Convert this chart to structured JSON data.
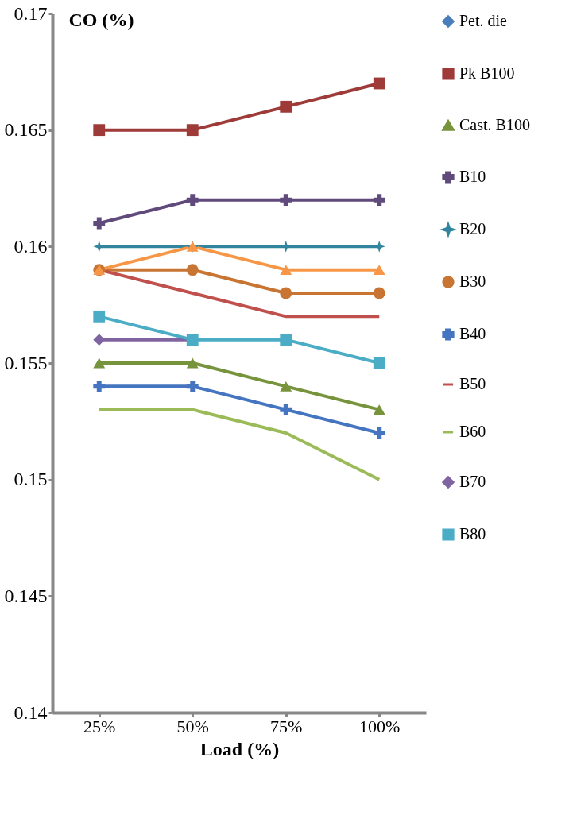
{
  "chart_data": {
    "type": "line",
    "ylabel": "CO (%)",
    "xlabel": "Load (%)",
    "categories": [
      "25%",
      "50%",
      "75%",
      "100%"
    ],
    "ylim": [
      0.14,
      0.17
    ],
    "yticks": [
      0.14,
      0.145,
      0.15,
      0.155,
      0.16,
      0.165,
      0.17
    ],
    "grid": false,
    "legend": "right",
    "series": [
      {
        "name": "Pet. die",
        "color": "#4a7ebb",
        "marker": "diamond",
        "values": [
          null,
          null,
          null,
          null
        ]
      },
      {
        "name": "Pk B100",
        "color": "#9e3a38",
        "marker": "square",
        "values": [
          0.165,
          0.165,
          0.166,
          0.167
        ]
      },
      {
        "name": "Cast. B100",
        "color": "#77933c",
        "marker": "triangle",
        "values": [
          0.155,
          0.155,
          0.154,
          0.153
        ]
      },
      {
        "name": "B10",
        "color": "#604a7b",
        "marker": "cross",
        "values": [
          0.161,
          0.162,
          0.162,
          0.162
        ]
      },
      {
        "name": "B20",
        "color": "#31859c",
        "marker": "star",
        "values": [
          0.16,
          0.16,
          0.16,
          0.16
        ]
      },
      {
        "name": "B30",
        "color": "#c87533",
        "marker": "circle",
        "values": [
          0.159,
          0.159,
          0.158,
          0.158
        ]
      },
      {
        "name": "B40",
        "color": "#4575c0",
        "marker": "cross",
        "values": [
          0.154,
          0.154,
          0.153,
          0.152
        ]
      },
      {
        "name": "B50",
        "color": "#c0504d",
        "marker": "none",
        "values": [
          0.159,
          0.158,
          0.157,
          0.157
        ]
      },
      {
        "name": "B60",
        "color": "#9bbb59",
        "marker": "none",
        "values": [
          0.153,
          0.153,
          0.152,
          0.15
        ]
      },
      {
        "name": "B70",
        "color": "#8064a2",
        "marker": "diamond",
        "values": [
          0.156,
          0.156,
          null,
          null
        ]
      },
      {
        "name": "B80",
        "color": "#4bacc6",
        "marker": "square",
        "values": [
          0.157,
          0.156,
          0.156,
          0.155
        ]
      },
      {
        "color": "#f79646",
        "marker": "triangle",
        "values": [
          0.159,
          0.16,
          0.159,
          0.159
        ]
      }
    ]
  }
}
